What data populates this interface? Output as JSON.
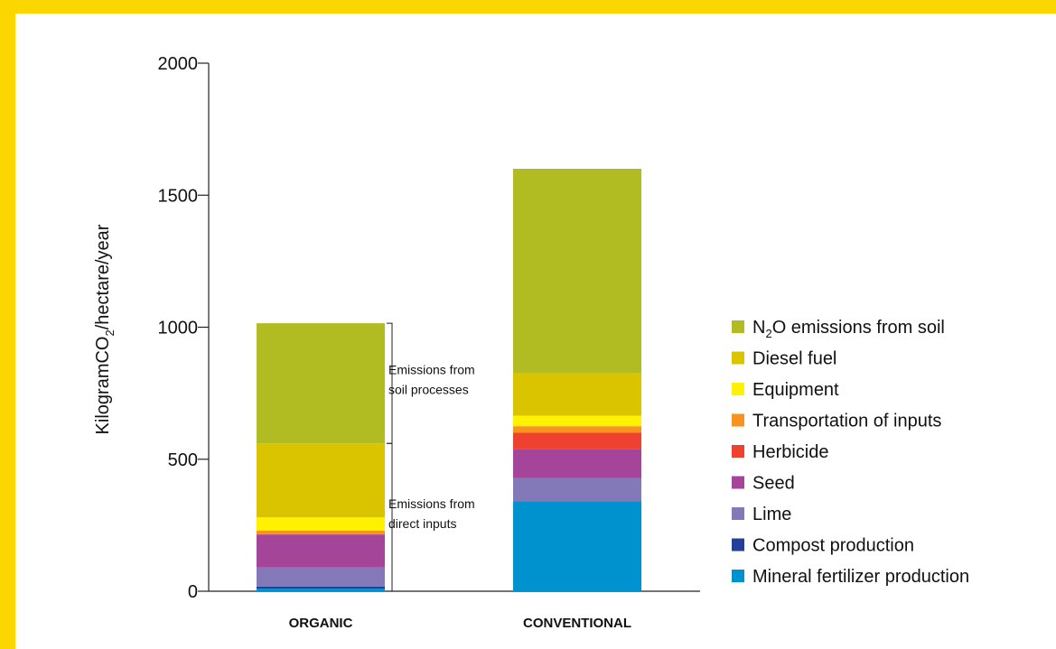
{
  "chart_data": {
    "type": "bar",
    "stacked": true,
    "ylabel_parts": [
      "KilogramCO",
      "2",
      "/hectare/year"
    ],
    "ylim": [
      0,
      2000
    ],
    "yticks": [
      0,
      500,
      1000,
      1500,
      2000
    ],
    "categories": [
      "ORGANIC",
      "CONVENTIONAL"
    ],
    "series": [
      {
        "name": "Mineral fertilizer production",
        "color": "#0092cf",
        "values": [
          10,
          340
        ]
      },
      {
        "name": "Compost production",
        "color": "#22409a",
        "values": [
          8,
          0
        ]
      },
      {
        "name": "Lime",
        "color": "#8378b8",
        "values": [
          72,
          88
        ]
      },
      {
        "name": "Seed",
        "color": "#a4459a",
        "values": [
          125,
          110
        ]
      },
      {
        "name": "Herbicide",
        "color": "#ee4130",
        "values": [
          0,
          62
        ]
      },
      {
        "name": "Transportation of inputs",
        "color": "#f7931e",
        "values": [
          15,
          25
        ]
      },
      {
        "name": "Equipment",
        "color": "#fff200",
        "values": [
          50,
          40
        ]
      },
      {
        "name": "Diesel fuel",
        "color": "#dac400",
        "values": [
          280,
          160
        ]
      },
      {
        "name": "N2O emissions from soil",
        "name_parts": [
          "N",
          "2",
          "O emissions from soil"
        ],
        "color": "#b1bb22",
        "values": [
          455,
          775
        ]
      }
    ],
    "annotations": [
      {
        "lines": [
          "Emissions from",
          "soil processes"
        ],
        "range": [
          560,
          1015
        ]
      },
      {
        "lines": [
          "Emissions from",
          "direct inputs"
        ],
        "range": [
          0,
          560
        ]
      }
    ],
    "legend": "right"
  }
}
